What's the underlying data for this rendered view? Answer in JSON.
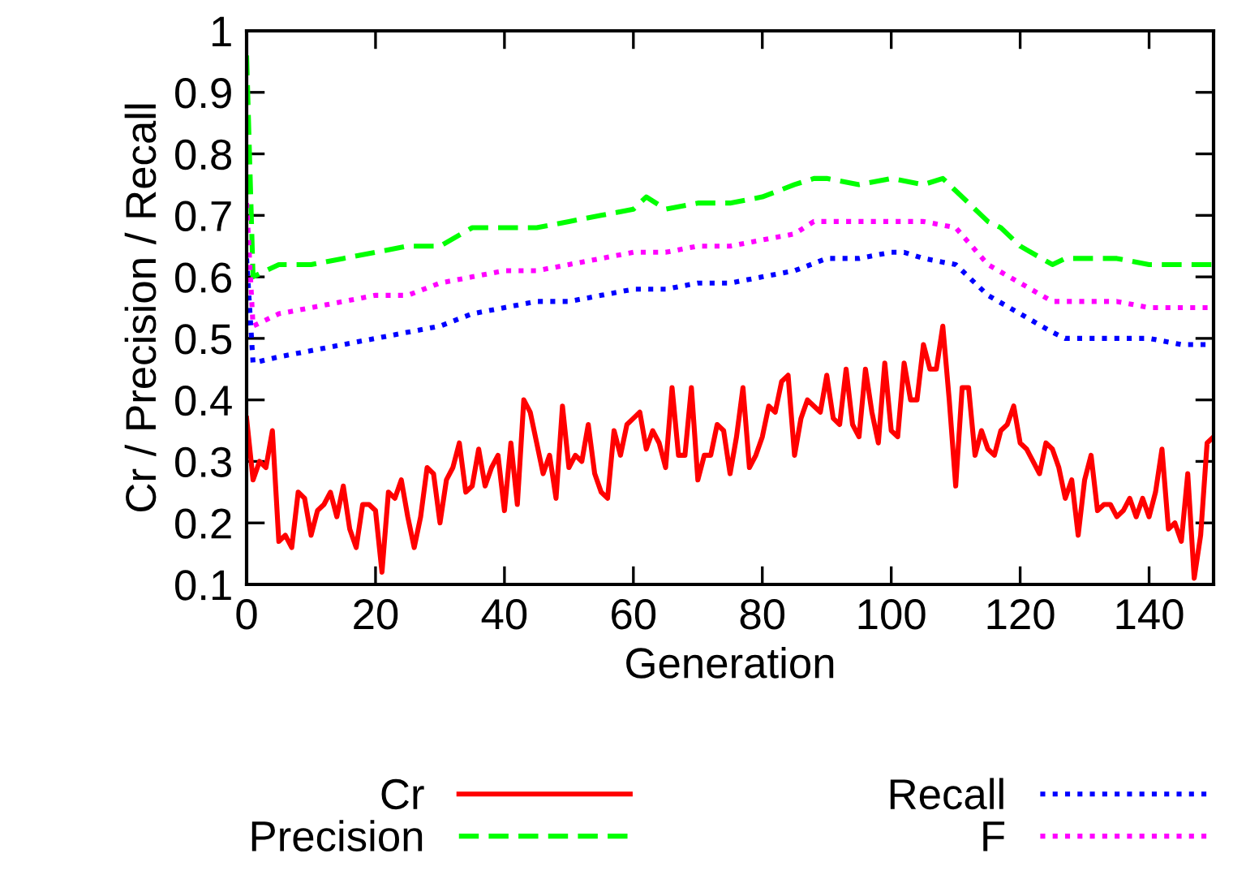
{
  "chart_data": {
    "type": "line",
    "xlabel": "Generation",
    "ylabel": "Cr / Precision / Recall",
    "xlim": [
      0,
      150
    ],
    "xticks": [
      0,
      20,
      40,
      60,
      80,
      100,
      120,
      140
    ],
    "ylim": [
      0.1,
      1
    ],
    "yticks": [
      0.1,
      0.2,
      0.3,
      0.4,
      0.5,
      0.6,
      0.7,
      0.8,
      0.9,
      1
    ],
    "grid": false,
    "legend": "bottom",
    "series": [
      {
        "name": "Cr",
        "color": "#ff0000",
        "line_style": "solid",
        "x": [
          0,
          1,
          2,
          3,
          4,
          5,
          6,
          7,
          8,
          9,
          10,
          11,
          12,
          13,
          14,
          15,
          16,
          17,
          18,
          19,
          20,
          21,
          22,
          23,
          24,
          25,
          26,
          27,
          28,
          29,
          30,
          31,
          32,
          33,
          34,
          35,
          36,
          37,
          38,
          39,
          40,
          41,
          42,
          43,
          44,
          45,
          46,
          47,
          48,
          49,
          50,
          51,
          52,
          53,
          54,
          55,
          56,
          57,
          58,
          59,
          60,
          61,
          62,
          63,
          64,
          65,
          66,
          67,
          68,
          69,
          70,
          71,
          72,
          73,
          74,
          75,
          76,
          77,
          78,
          79,
          80,
          81,
          82,
          83,
          84,
          85,
          86,
          87,
          88,
          89,
          90,
          91,
          92,
          93,
          94,
          95,
          96,
          97,
          98,
          99,
          100,
          101,
          102,
          103,
          104,
          105,
          106,
          107,
          108,
          109,
          110,
          111,
          112,
          113,
          114,
          115,
          116,
          117,
          118,
          119,
          120,
          121,
          122,
          123,
          124,
          125,
          126,
          127,
          128,
          129,
          130,
          131,
          132,
          133,
          134,
          135,
          136,
          137,
          138,
          139,
          140,
          141,
          142,
          143,
          144,
          145,
          146,
          147,
          148,
          149,
          150
        ],
        "values": [
          0.37,
          0.27,
          0.3,
          0.29,
          0.35,
          0.17,
          0.18,
          0.16,
          0.25,
          0.24,
          0.18,
          0.22,
          0.23,
          0.25,
          0.21,
          0.26,
          0.19,
          0.16,
          0.23,
          0.23,
          0.22,
          0.12,
          0.25,
          0.24,
          0.27,
          0.21,
          0.16,
          0.21,
          0.29,
          0.28,
          0.2,
          0.27,
          0.29,
          0.33,
          0.25,
          0.26,
          0.32,
          0.26,
          0.29,
          0.31,
          0.22,
          0.33,
          0.23,
          0.4,
          0.38,
          0.33,
          0.28,
          0.31,
          0.24,
          0.39,
          0.29,
          0.31,
          0.3,
          0.36,
          0.28,
          0.25,
          0.24,
          0.35,
          0.31,
          0.36,
          0.37,
          0.38,
          0.32,
          0.35,
          0.33,
          0.29,
          0.42,
          0.31,
          0.31,
          0.42,
          0.27,
          0.31,
          0.31,
          0.36,
          0.35,
          0.28,
          0.34,
          0.42,
          0.29,
          0.31,
          0.34,
          0.39,
          0.38,
          0.43,
          0.44,
          0.31,
          0.37,
          0.4,
          0.39,
          0.38,
          0.44,
          0.37,
          0.36,
          0.45,
          0.36,
          0.34,
          0.45,
          0.38,
          0.33,
          0.46,
          0.35,
          0.34,
          0.46,
          0.4,
          0.4,
          0.49,
          0.45,
          0.45,
          0.52,
          0.4,
          0.26,
          0.42,
          0.42,
          0.31,
          0.35,
          0.32,
          0.31,
          0.35,
          0.36,
          0.39,
          0.33,
          0.32,
          0.3,
          0.28,
          0.33,
          0.32,
          0.29,
          0.24,
          0.27,
          0.18,
          0.27,
          0.31,
          0.22,
          0.23,
          0.23,
          0.21,
          0.22,
          0.24,
          0.21,
          0.24,
          0.21,
          0.25,
          0.32,
          0.19,
          0.2,
          0.17,
          0.28,
          0.11,
          0.18,
          0.33,
          0.34
        ]
      },
      {
        "name": "Precision",
        "color": "#00ff00",
        "line_style": "dashed",
        "x": [
          0,
          1,
          5,
          10,
          15,
          20,
          25,
          30,
          35,
          40,
          45,
          50,
          55,
          60,
          62,
          65,
          70,
          75,
          80,
          85,
          88,
          90,
          95,
          100,
          105,
          108,
          110,
          115,
          117,
          120,
          125,
          127,
          130,
          135,
          140,
          145,
          150
        ],
        "values": [
          0.96,
          0.6,
          0.62,
          0.62,
          0.63,
          0.64,
          0.65,
          0.65,
          0.68,
          0.68,
          0.68,
          0.69,
          0.7,
          0.71,
          0.73,
          0.71,
          0.72,
          0.72,
          0.73,
          0.75,
          0.76,
          0.76,
          0.75,
          0.76,
          0.75,
          0.76,
          0.74,
          0.69,
          0.68,
          0.65,
          0.62,
          0.63,
          0.63,
          0.63,
          0.62,
          0.62,
          0.62
        ]
      },
      {
        "name": "Recall",
        "color": "#0000ff",
        "line_style": "dotted",
        "x": [
          0,
          1,
          5,
          10,
          15,
          20,
          25,
          30,
          35,
          40,
          45,
          50,
          55,
          60,
          65,
          70,
          75,
          80,
          85,
          90,
          95,
          100,
          102,
          105,
          110,
          115,
          120,
          125,
          127,
          130,
          135,
          140,
          145,
          150
        ],
        "values": [
          0.63,
          0.46,
          0.47,
          0.48,
          0.49,
          0.5,
          0.51,
          0.52,
          0.54,
          0.55,
          0.56,
          0.56,
          0.57,
          0.58,
          0.58,
          0.59,
          0.59,
          0.6,
          0.61,
          0.63,
          0.63,
          0.64,
          0.64,
          0.63,
          0.62,
          0.57,
          0.54,
          0.51,
          0.5,
          0.5,
          0.5,
          0.5,
          0.49,
          0.49
        ]
      },
      {
        "name": "F",
        "color": "#ff00ff",
        "line_style": "dotted",
        "x": [
          0,
          1,
          5,
          10,
          15,
          20,
          25,
          30,
          35,
          40,
          45,
          50,
          55,
          60,
          65,
          70,
          75,
          80,
          85,
          88,
          90,
          95,
          100,
          105,
          110,
          115,
          120,
          125,
          127,
          130,
          135,
          140,
          150
        ],
        "values": [
          0.72,
          0.52,
          0.54,
          0.55,
          0.56,
          0.57,
          0.57,
          0.59,
          0.6,
          0.61,
          0.61,
          0.62,
          0.63,
          0.64,
          0.64,
          0.65,
          0.65,
          0.66,
          0.67,
          0.69,
          0.69,
          0.69,
          0.69,
          0.69,
          0.68,
          0.62,
          0.59,
          0.56,
          0.56,
          0.56,
          0.56,
          0.55,
          0.55
        ]
      }
    ]
  }
}
